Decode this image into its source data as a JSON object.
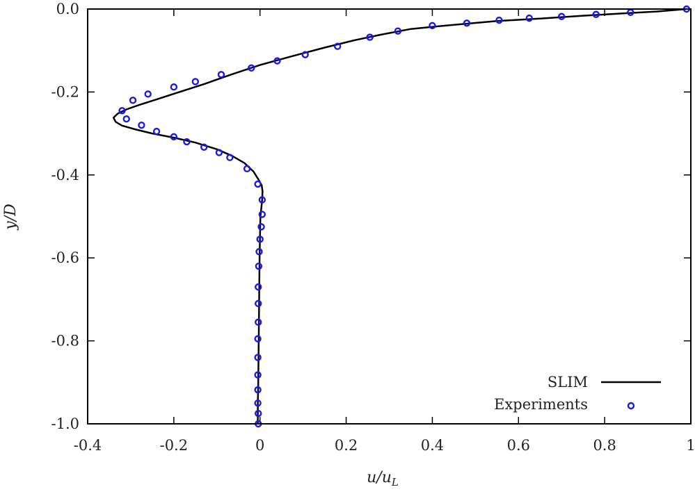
{
  "chart_data": {
    "type": "line",
    "title": "",
    "xlabel": "u/u_L",
    "ylabel": "y/D",
    "xlim": [
      -0.4,
      1.0
    ],
    "ylim": [
      -1.0,
      0.0
    ],
    "xticks": [
      -0.4,
      -0.2,
      0,
      0.2,
      0.4,
      0.6,
      0.8,
      1
    ],
    "xtick_labels": [
      "-0.4",
      "-0.2",
      "0",
      "0.2",
      "0.4",
      "0.6",
      "0.8",
      "1"
    ],
    "yticks": [
      0.0,
      -0.2,
      -0.4,
      -0.6,
      -0.8,
      -1.0
    ],
    "ytick_labels": [
      "0.0",
      "-0.2",
      "-0.4",
      "-0.6",
      "-0.8",
      "-1.0"
    ],
    "grid": false,
    "legend_position": "bottom-right",
    "series": [
      {
        "name": "SLIM",
        "style": "line",
        "color": "#000000",
        "x": [
          0.99,
          0.92,
          0.85,
          0.75,
          0.65,
          0.55,
          0.45,
          0.35,
          0.28,
          0.22,
          0.15,
          0.08,
          0.0,
          -0.07,
          -0.13,
          -0.19,
          -0.24,
          -0.28,
          -0.31,
          -0.33,
          -0.34,
          -0.335,
          -0.32,
          -0.29,
          -0.25,
          -0.2,
          -0.15,
          -0.1,
          -0.065,
          -0.035,
          -0.015,
          -0.004,
          0.004,
          0.006,
          0.005,
          0.003,
          0.001,
          0.0,
          -0.001,
          -0.002,
          -0.003,
          -0.004,
          -0.005,
          -0.005
        ],
        "y": [
          0.0,
          -0.006,
          -0.01,
          -0.016,
          -0.023,
          -0.029,
          -0.038,
          -0.048,
          -0.062,
          -0.075,
          -0.093,
          -0.112,
          -0.135,
          -0.159,
          -0.181,
          -0.201,
          -0.218,
          -0.231,
          -0.242,
          -0.252,
          -0.262,
          -0.272,
          -0.281,
          -0.29,
          -0.3,
          -0.31,
          -0.322,
          -0.338,
          -0.354,
          -0.372,
          -0.392,
          -0.41,
          -0.425,
          -0.44,
          -0.46,
          -0.48,
          -0.5,
          -0.55,
          -0.6,
          -0.7,
          -0.8,
          -0.9,
          -0.95,
          -1.0
        ]
      },
      {
        "name": "Experiments",
        "style": "markers",
        "color": "#1a1ae6",
        "x": [
          0.99,
          0.86,
          0.78,
          0.7,
          0.625,
          0.555,
          0.48,
          0.4,
          0.32,
          0.255,
          0.18,
          0.105,
          0.04,
          -0.02,
          -0.09,
          -0.15,
          -0.2,
          -0.26,
          -0.295,
          -0.32,
          -0.31,
          -0.275,
          -0.24,
          -0.2,
          -0.17,
          -0.13,
          -0.095,
          -0.07,
          -0.03,
          -0.005,
          0.005,
          0.005,
          0.003,
          0.0,
          -0.002,
          -0.003,
          -0.004,
          -0.004,
          -0.004,
          -0.005,
          -0.005,
          -0.005,
          -0.005,
          -0.005,
          -0.004,
          -0.004
        ],
        "y": [
          0.0,
          -0.008,
          -0.013,
          -0.018,
          -0.022,
          -0.027,
          -0.034,
          -0.04,
          -0.053,
          -0.068,
          -0.09,
          -0.11,
          -0.125,
          -0.142,
          -0.158,
          -0.175,
          -0.188,
          -0.205,
          -0.22,
          -0.245,
          -0.265,
          -0.28,
          -0.295,
          -0.308,
          -0.32,
          -0.333,
          -0.346,
          -0.358,
          -0.385,
          -0.422,
          -0.46,
          -0.495,
          -0.525,
          -0.555,
          -0.585,
          -0.62,
          -0.67,
          -0.71,
          -0.755,
          -0.795,
          -0.84,
          -0.882,
          -0.918,
          -0.95,
          -0.975,
          -1.0
        ]
      }
    ]
  }
}
